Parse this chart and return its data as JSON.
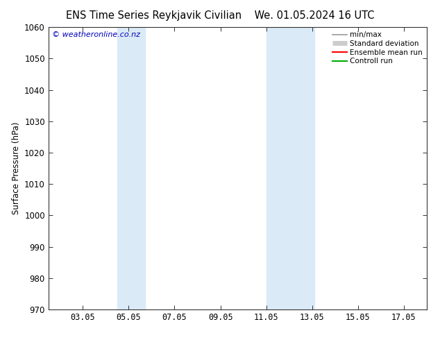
{
  "title_left": "ENS Time Series Reykjavik Civilian",
  "title_right": "We. 01.05.2024 16 UTC",
  "ylabel": "Surface Pressure (hPa)",
  "ylim": [
    970,
    1060
  ],
  "yticks": [
    970,
    980,
    990,
    1000,
    1010,
    1020,
    1030,
    1040,
    1050,
    1060
  ],
  "xlim": [
    1.5,
    18.0
  ],
  "xtick_labels": [
    "03.05",
    "05.05",
    "07.05",
    "09.05",
    "11.05",
    "13.05",
    "15.05",
    "17.05"
  ],
  "xtick_positions": [
    3,
    5,
    7,
    9,
    11,
    13,
    15,
    17
  ],
  "shaded_bands": [
    {
      "x_start": 4.5,
      "x_end": 5.7
    },
    {
      "x_start": 11.0,
      "x_end": 13.1
    }
  ],
  "shaded_color": "#daeaf7",
  "watermark": "© weatheronline.co.nz",
  "watermark_color": "#0000bb",
  "legend_entries": [
    {
      "label": "min/max",
      "color": "#999999",
      "lw": 1.2
    },
    {
      "label": "Standard deviation",
      "color": "#cccccc",
      "lw": 5
    },
    {
      "label": "Ensemble mean run",
      "color": "#ff0000",
      "lw": 1.5
    },
    {
      "label": "Controll run",
      "color": "#00aa00",
      "lw": 1.5
    }
  ],
  "bg_color": "#ffffff",
  "spine_color": "#333333",
  "title_fontsize": 10.5,
  "axis_fontsize": 8.5,
  "watermark_fontsize": 8,
  "legend_fontsize": 7.5
}
